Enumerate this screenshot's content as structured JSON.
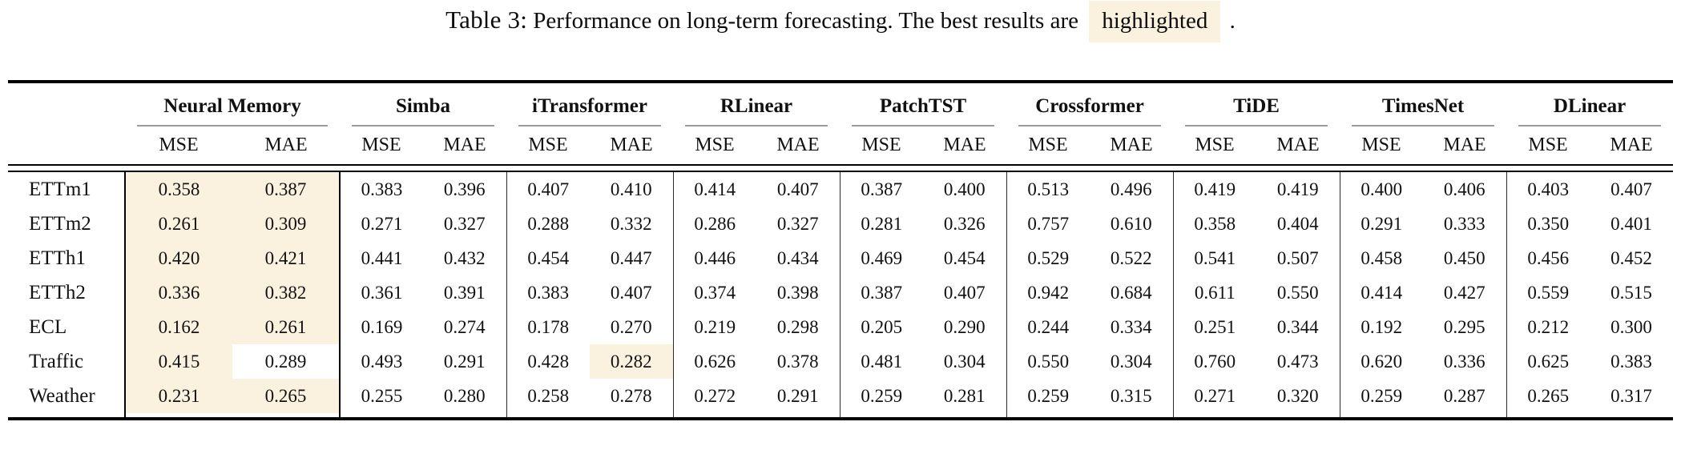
{
  "caption": {
    "label": "Table 3:",
    "body": "Performance on long-term forecasting. The best results are",
    "highlighted_word": "highlighted",
    "suffix": "."
  },
  "colors": {
    "highlight_bg": "#faf2df",
    "rule_black": "#000000",
    "cmidrule_gray": "#9b9b9b"
  },
  "table": {
    "groups": [
      "Neural Memory",
      "Simba",
      "iTransformer",
      "RLinear",
      "PatchTST",
      "Crossformer",
      "TiDE",
      "TimesNet",
      "DLinear"
    ],
    "subheaders": [
      "MSE",
      "MAE"
    ],
    "rows": [
      {
        "label": "ETTm1",
        "values": [
          "0.358",
          "0.387",
          "0.383",
          "0.396",
          "0.407",
          "0.410",
          "0.414",
          "0.407",
          "0.387",
          "0.400",
          "0.513",
          "0.496",
          "0.419",
          "0.419",
          "0.400",
          "0.406",
          "0.403",
          "0.407"
        ],
        "highlight": [
          0,
          1
        ]
      },
      {
        "label": "ETTm2",
        "values": [
          "0.261",
          "0.309",
          "0.271",
          "0.327",
          "0.288",
          "0.332",
          "0.286",
          "0.327",
          "0.281",
          "0.326",
          "0.757",
          "0.610",
          "0.358",
          "0.404",
          "0.291",
          "0.333",
          "0.350",
          "0.401"
        ],
        "highlight": [
          0,
          1
        ]
      },
      {
        "label": "ETTh1",
        "values": [
          "0.420",
          "0.421",
          "0.441",
          "0.432",
          "0.454",
          "0.447",
          "0.446",
          "0.434",
          "0.469",
          "0.454",
          "0.529",
          "0.522",
          "0.541",
          "0.507",
          "0.458",
          "0.450",
          "0.456",
          "0.452"
        ],
        "highlight": [
          0,
          1
        ]
      },
      {
        "label": "ETTh2",
        "values": [
          "0.336",
          "0.382",
          "0.361",
          "0.391",
          "0.383",
          "0.407",
          "0.374",
          "0.398",
          "0.387",
          "0.407",
          "0.942",
          "0.684",
          "0.611",
          "0.550",
          "0.414",
          "0.427",
          "0.559",
          "0.515"
        ],
        "highlight": [
          0,
          1
        ]
      },
      {
        "label": "ECL",
        "values": [
          "0.162",
          "0.261",
          "0.169",
          "0.274",
          "0.178",
          "0.270",
          "0.219",
          "0.298",
          "0.205",
          "0.290",
          "0.244",
          "0.334",
          "0.251",
          "0.344",
          "0.192",
          "0.295",
          "0.212",
          "0.300"
        ],
        "highlight": [
          0,
          1
        ]
      },
      {
        "label": "Traffic",
        "values": [
          "0.415",
          "0.289",
          "0.493",
          "0.291",
          "0.428",
          "0.282",
          "0.626",
          "0.378",
          "0.481",
          "0.304",
          "0.550",
          "0.304",
          "0.760",
          "0.473",
          "0.620",
          "0.336",
          "0.625",
          "0.383"
        ],
        "highlight": [
          0,
          5
        ]
      },
      {
        "label": "Weather",
        "values": [
          "0.231",
          "0.265",
          "0.255",
          "0.280",
          "0.258",
          "0.278",
          "0.272",
          "0.291",
          "0.259",
          "0.281",
          "0.259",
          "0.315",
          "0.271",
          "0.320",
          "0.259",
          "0.287",
          "0.265",
          "0.317"
        ],
        "highlight": [
          0,
          1
        ]
      }
    ]
  }
}
